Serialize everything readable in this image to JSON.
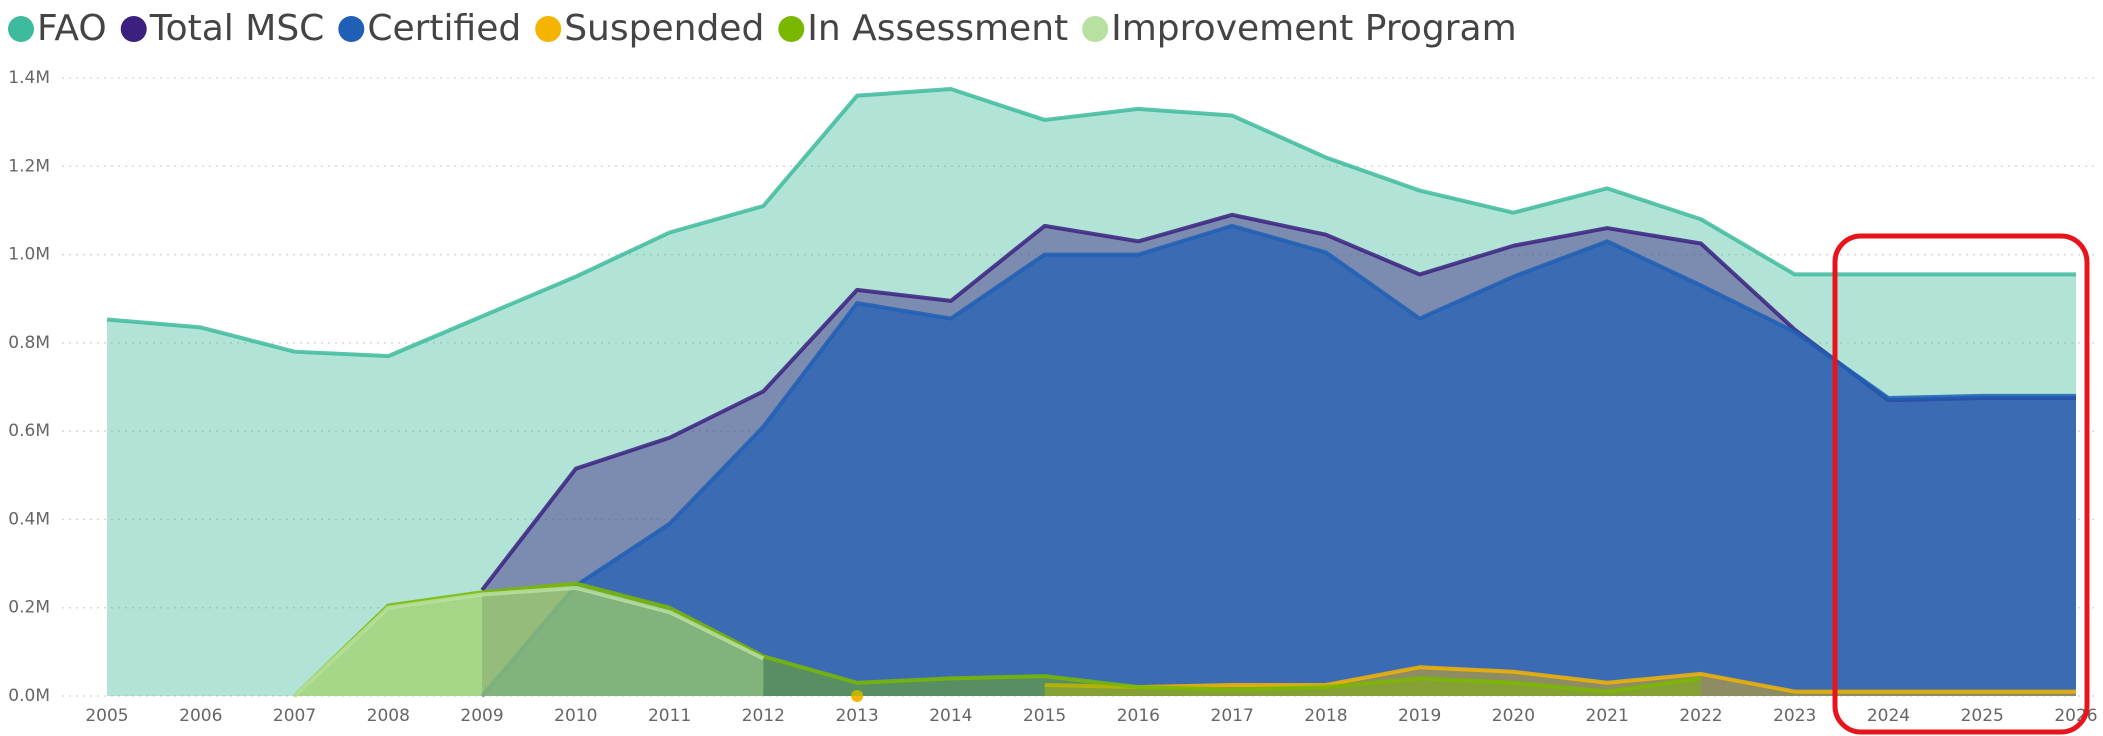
{
  "chart_data": {
    "type": "area",
    "categories": [
      "2005",
      "2006",
      "2007",
      "2008",
      "2009",
      "2010",
      "2011",
      "2012",
      "2013",
      "2014",
      "2015",
      "2016",
      "2017",
      "2018",
      "2019",
      "2020",
      "2021",
      "2022",
      "2023",
      "2024",
      "2025",
      "2026"
    ],
    "series": [
      {
        "name": "FAO",
        "color": "#3dbb9c",
        "values": [
          0.853,
          0.835,
          0.78,
          0.77,
          0.86,
          0.95,
          1.05,
          1.11,
          1.36,
          1.375,
          1.305,
          1.33,
          1.315,
          1.22,
          1.145,
          1.095,
          1.15,
          1.08,
          0.955,
          0.955,
          0.955,
          0.955
        ]
      },
      {
        "name": "Total MSC",
        "color": "#3b2080",
        "values": [
          null,
          null,
          null,
          null,
          0.24,
          0.515,
          0.585,
          0.69,
          0.92,
          0.895,
          1.065,
          1.03,
          1.09,
          1.045,
          0.955,
          1.02,
          1.06,
          1.025,
          0.83,
          0.67,
          0.675,
          0.675
        ]
      },
      {
        "name": "Certified",
        "color": "#1f5fb5",
        "values": [
          null,
          null,
          null,
          null,
          0,
          0.25,
          0.39,
          0.61,
          0.89,
          0.855,
          1.0,
          1.0,
          1.065,
          1.005,
          0.855,
          0.95,
          1.03,
          0.93,
          0.825,
          0.675,
          0.68,
          0.68
        ]
      },
      {
        "name": "Suspended",
        "color": "#f5b400",
        "values": [
          null,
          null,
          null,
          null,
          null,
          null,
          null,
          null,
          0,
          null,
          0.025,
          0.02,
          0.025,
          0.025,
          0.065,
          0.055,
          0.03,
          0.05,
          0.01,
          0.01,
          0.01,
          0.01
        ]
      },
      {
        "name": "In Assessment",
        "color": "#7ab800",
        "values": [
          null,
          null,
          0,
          0.205,
          0.235,
          0.255,
          0.2,
          0.09,
          0.03,
          0.04,
          0.045,
          0.02,
          0.015,
          0.02,
          0.04,
          0.03,
          0.01,
          0.04,
          null,
          null,
          null,
          null
        ]
      },
      {
        "name": "Improvement Program",
        "color": "#b8e0a0",
        "values": [
          null,
          null,
          0,
          0.2,
          0.23,
          0.245,
          0.19,
          0.085,
          null,
          null,
          null,
          null,
          null,
          null,
          null,
          null,
          null,
          null,
          null,
          null,
          null,
          null
        ]
      }
    ],
    "ylim": [
      0,
      1.4
    ],
    "yticks": [
      {
        "value": 0,
        "label": "0.0M"
      },
      {
        "value": 0.2,
        "label": "0.2M"
      },
      {
        "value": 0.4,
        "label": "0.4M"
      },
      {
        "value": 0.6,
        "label": "0.6M"
      },
      {
        "value": 0.8,
        "label": "0.8M"
      },
      {
        "value": 1.0,
        "label": "1.0M"
      },
      {
        "value": 1.2,
        "label": "1.2M"
      },
      {
        "value": 1.4,
        "label": "1.4M"
      }
    ],
    "grid": true,
    "legend": "top-left"
  }
}
